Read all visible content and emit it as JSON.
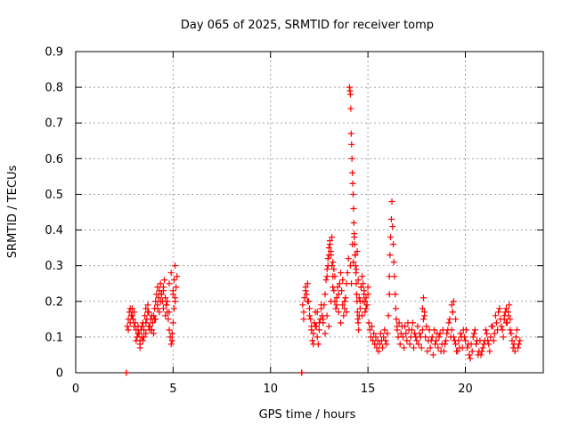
{
  "chart_data": {
    "type": "scatter",
    "title": "Day 065 of 2025, SRMTID for receiver tomp",
    "xlabel": "GPS time / hours",
    "ylabel": "SRMTID / TECUs",
    "xlim": [
      0,
      24
    ],
    "ylim": [
      0,
      0.9
    ],
    "xticks": [
      0,
      5,
      10,
      15,
      20
    ],
    "yticks": [
      0,
      0.1,
      0.2,
      0.3,
      0.4,
      0.5,
      0.6,
      0.7,
      0.8,
      0.9
    ],
    "ytick_labels": [
      "0",
      "0.1",
      "0.2",
      "0.3",
      "0.4",
      "0.5",
      "0.6",
      "0.7",
      "0.8",
      "0.9"
    ],
    "grid": true,
    "marker": "+",
    "color": "#ff0000",
    "series": [
      {
        "name": "SRMTID",
        "x": [
          2.6,
          2.6,
          11.6,
          11.6,
          2.65,
          2.7,
          2.75,
          2.8,
          2.85,
          2.9,
          2.95,
          3.0,
          3.05,
          3.1,
          3.15,
          3.2,
          3.25,
          3.3,
          3.35,
          3.4,
          3.45,
          3.5,
          3.55,
          3.6,
          3.65,
          3.7,
          3.75,
          3.8,
          3.85,
          3.9,
          3.95,
          4.0,
          4.05,
          4.1,
          4.15,
          4.2,
          4.25,
          4.3,
          4.35,
          4.4,
          4.45,
          4.5,
          4.55,
          4.6,
          4.65,
          4.7,
          4.75,
          4.8,
          4.85,
          4.9,
          4.95,
          5.0,
          5.05,
          5.1,
          5.15,
          5.2,
          2.7,
          2.8,
          2.9,
          3.0,
          3.1,
          3.2,
          3.3,
          3.4,
          3.5,
          3.6,
          3.7,
          3.8,
          3.9,
          4.0,
          4.1,
          4.2,
          4.3,
          4.4,
          4.5,
          4.6,
          4.7,
          4.8,
          4.9,
          5.0,
          5.1,
          3.3,
          3.45,
          3.6,
          3.75,
          3.9,
          4.05,
          4.2,
          4.35,
          4.5,
          4.65,
          4.8,
          4.95,
          5.1,
          5.05,
          5.0,
          11.65,
          11.7,
          11.75,
          11.8,
          11.85,
          11.9,
          11.95,
          12.0,
          12.05,
          12.1,
          12.15,
          12.2,
          12.25,
          12.3,
          12.35,
          12.4,
          12.45,
          12.5,
          12.55,
          12.6,
          12.65,
          12.7,
          12.75,
          12.8,
          12.85,
          12.9,
          12.95,
          13.0,
          13.05,
          13.1,
          13.15,
          13.2,
          13.25,
          13.3,
          13.35,
          13.4,
          13.45,
          13.5,
          13.55,
          13.6,
          13.65,
          13.7,
          13.75,
          13.8,
          13.85,
          13.9,
          13.95,
          14.0,
          11.7,
          11.8,
          11.9,
          12.0,
          12.1,
          12.2,
          12.3,
          12.4,
          12.5,
          12.6,
          12.7,
          12.8,
          12.9,
          13.0,
          13.1,
          13.2,
          13.3,
          13.4,
          13.5,
          13.6,
          13.7,
          13.8,
          13.9,
          12.9,
          12.95,
          13.0,
          13.05,
          13.1,
          13.15,
          13.2,
          13.25,
          14.05,
          14.08,
          14.1,
          14.12,
          14.14,
          14.16,
          14.18,
          14.2,
          14.22,
          14.24,
          14.26,
          14.28,
          14.3,
          14.32,
          14.34,
          14.36,
          14.38,
          14.4,
          14.42,
          14.44,
          14.46,
          14.48,
          14.5,
          14.52,
          14.55,
          14.6,
          14.65,
          14.7,
          14.75,
          14.8,
          14.85,
          14.9,
          14.95,
          15.0,
          14.1,
          14.15,
          14.2,
          14.25,
          14.3,
          14.35,
          14.4,
          14.45,
          14.5,
          14.55,
          14.6,
          14.65,
          14.7,
          14.75,
          14.8,
          14.85,
          14.9,
          14.95,
          15.0,
          15.05,
          15.1,
          15.15,
          15.2,
          15.25,
          15.3,
          15.35,
          15.4,
          15.45,
          15.5,
          15.55,
          15.6,
          15.65,
          15.7,
          15.75,
          15.8,
          15.85,
          15.9,
          15.95,
          16.0,
          16.05,
          16.1,
          16.1,
          16.13,
          16.16,
          16.2,
          16.23,
          16.26,
          16.3,
          16.33,
          16.36,
          16.4,
          16.43,
          16.46,
          16.5,
          16.5,
          16.6,
          16.7,
          16.8,
          16.9,
          17.0,
          17.1,
          17.2,
          17.3,
          17.4,
          17.5,
          17.6,
          17.7,
          17.8,
          17.9,
          18.0,
          18.1,
          18.2,
          18.3,
          18.4,
          18.5,
          18.6,
          18.7,
          18.8,
          18.9,
          19.0,
          19.1,
          19.2,
          19.3,
          19.4,
          19.5,
          19.6,
          19.7,
          19.8,
          19.9,
          20.0,
          20.1,
          20.2,
          20.3,
          20.4,
          20.5,
          20.6,
          20.7,
          20.8,
          20.9,
          21.0,
          21.1,
          21.2,
          21.3,
          21.4,
          21.5,
          21.6,
          21.7,
          21.8,
          21.9,
          22.0,
          22.1,
          22.2,
          22.3,
          22.4,
          22.5,
          22.6,
          22.7,
          22.8,
          16.55,
          16.65,
          16.75,
          16.85,
          16.95,
          17.05,
          17.15,
          17.25,
          17.35,
          17.45,
          17.55,
          17.65,
          17.75,
          17.85,
          17.95,
          18.05,
          18.15,
          18.25,
          18.35,
          18.45,
          18.55,
          18.65,
          18.75,
          18.85,
          18.95,
          19.05,
          19.15,
          19.25,
          19.35,
          19.45,
          19.55,
          19.65,
          19.75,
          19.85,
          19.95,
          20.05,
          20.15,
          20.25,
          20.35,
          20.45,
          20.55,
          20.65,
          20.75,
          20.85,
          20.95,
          21.05,
          21.15,
          21.25,
          21.35,
          21.45,
          21.55,
          21.65,
          21.75,
          21.85,
          21.95,
          22.05,
          22.15,
          22.25,
          22.35,
          22.45,
          22.55,
          22.65,
          22.75,
          17.8,
          17.85,
          17.9,
          19.3,
          19.35,
          19.4,
          19.5,
          22.0,
          22.1,
          22.2,
          22.3
        ],
        "y": [
          0.0,
          0.0,
          0.0,
          0.0,
          0.13,
          0.15,
          0.17,
          0.14,
          0.16,
          0.18,
          0.15,
          0.17,
          0.14,
          0.12,
          0.1,
          0.13,
          0.11,
          0.09,
          0.12,
          0.1,
          0.14,
          0.12,
          0.16,
          0.18,
          0.15,
          0.19,
          0.17,
          0.13,
          0.15,
          0.12,
          0.14,
          0.16,
          0.18,
          0.2,
          0.22,
          0.24,
          0.21,
          0.23,
          0.25,
          0.22,
          0.2,
          0.24,
          0.26,
          0.21,
          0.19,
          0.17,
          0.15,
          0.12,
          0.1,
          0.08,
          0.09,
          0.14,
          0.18,
          0.21,
          0.24,
          0.27,
          0.12,
          0.18,
          0.16,
          0.13,
          0.09,
          0.11,
          0.08,
          0.13,
          0.1,
          0.14,
          0.17,
          0.12,
          0.16,
          0.11,
          0.15,
          0.19,
          0.17,
          0.22,
          0.18,
          0.16,
          0.2,
          0.25,
          0.28,
          0.22,
          0.3,
          0.07,
          0.09,
          0.11,
          0.13,
          0.12,
          0.15,
          0.18,
          0.2,
          0.23,
          0.19,
          0.17,
          0.11,
          0.2,
          0.26,
          0.23,
          0.19,
          0.17,
          0.21,
          0.24,
          0.22,
          0.25,
          0.2,
          0.18,
          0.15,
          0.12,
          0.09,
          0.11,
          0.14,
          0.17,
          0.13,
          0.1,
          0.08,
          0.12,
          0.15,
          0.18,
          0.16,
          0.14,
          0.19,
          0.22,
          0.26,
          0.29,
          0.32,
          0.35,
          0.37,
          0.33,
          0.3,
          0.27,
          0.23,
          0.2,
          0.18,
          0.21,
          0.24,
          0.22,
          0.25,
          0.28,
          0.23,
          0.19,
          0.16,
          0.18,
          0.21,
          0.25,
          0.28,
          0.32,
          0.15,
          0.23,
          0.2,
          0.16,
          0.13,
          0.08,
          0.13,
          0.17,
          0.14,
          0.19,
          0.15,
          0.11,
          0.16,
          0.13,
          0.2,
          0.24,
          0.27,
          0.19,
          0.17,
          0.14,
          0.26,
          0.2,
          0.17,
          0.27,
          0.3,
          0.33,
          0.36,
          0.34,
          0.38,
          0.31,
          0.29,
          0.8,
          0.79,
          0.78,
          0.74,
          0.67,
          0.64,
          0.6,
          0.56,
          0.53,
          0.5,
          0.46,
          0.42,
          0.39,
          0.36,
          0.33,
          0.3,
          0.28,
          0.25,
          0.22,
          0.2,
          0.17,
          0.15,
          0.14,
          0.12,
          0.16,
          0.2,
          0.24,
          0.27,
          0.25,
          0.22,
          0.2,
          0.18,
          0.19,
          0.22,
          0.3,
          0.25,
          0.36,
          0.31,
          0.38,
          0.33,
          0.29,
          0.34,
          0.26,
          0.21,
          0.18,
          0.24,
          0.16,
          0.2,
          0.23,
          0.17,
          0.21,
          0.19,
          0.24,
          0.14,
          0.12,
          0.1,
          0.13,
          0.09,
          0.11,
          0.08,
          0.1,
          0.07,
          0.09,
          0.06,
          0.08,
          0.11,
          0.09,
          0.07,
          0.1,
          0.12,
          0.09,
          0.08,
          0.11,
          0.16,
          0.22,
          0.27,
          0.33,
          0.38,
          0.43,
          0.48,
          0.41,
          0.36,
          0.31,
          0.27,
          0.22,
          0.18,
          0.15,
          0.13,
          0.12,
          0.14,
          0.11,
          0.1,
          0.13,
          0.09,
          0.12,
          0.1,
          0.14,
          0.11,
          0.09,
          0.08,
          0.1,
          0.12,
          0.16,
          0.13,
          0.09,
          0.07,
          0.1,
          0.12,
          0.09,
          0.07,
          0.11,
          0.08,
          0.06,
          0.09,
          0.12,
          0.15,
          0.12,
          0.1,
          0.08,
          0.06,
          0.07,
          0.1,
          0.12,
          0.09,
          0.07,
          0.05,
          0.08,
          0.1,
          0.12,
          0.09,
          0.06,
          0.05,
          0.07,
          0.09,
          0.11,
          0.08,
          0.1,
          0.13,
          0.11,
          0.14,
          0.17,
          0.15,
          0.12,
          0.15,
          0.18,
          0.16,
          0.12,
          0.09,
          0.08,
          0.1,
          0.07,
          0.09,
          0.1,
          0.08,
          0.13,
          0.07,
          0.11,
          0.14,
          0.08,
          0.12,
          0.07,
          0.1,
          0.13,
          0.11,
          0.07,
          0.15,
          0.1,
          0.06,
          0.12,
          0.09,
          0.05,
          0.08,
          0.11,
          0.1,
          0.06,
          0.12,
          0.08,
          0.11,
          0.14,
          0.1,
          0.17,
          0.09,
          0.06,
          0.09,
          0.11,
          0.07,
          0.1,
          0.12,
          0.08,
          0.04,
          0.06,
          0.11,
          0.08,
          0.05,
          0.09,
          0.06,
          0.08,
          0.12,
          0.09,
          0.06,
          0.13,
          0.09,
          0.16,
          0.12,
          0.18,
          0.13,
          0.1,
          0.17,
          0.14,
          0.19,
          0.11,
          0.07,
          0.06,
          0.12,
          0.08,
          0.18,
          0.21,
          0.17,
          0.19,
          0.17,
          0.2,
          0.15,
          0.16,
          0.14,
          0.17,
          0.15
        ]
      }
    ]
  }
}
